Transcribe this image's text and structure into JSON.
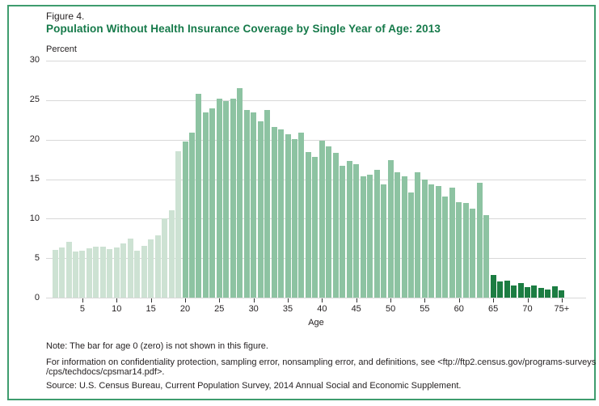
{
  "figure": {
    "label": "Figure 4.",
    "title": "Population Without Health Insurance Coverage by Single Year of Age: 2013"
  },
  "notes": {
    "age_zero_note": "Note: The bar for age 0 (zero) is not shown in this figure.",
    "confidentiality_line1": "For information on confidentiality protection, sampling error, nonsampling error, and definitions, see <ftp://ftp2.census.gov/programs-surveys",
    "confidentiality_line2": "/cps/techdocs/cpsmar14.pdf>.",
    "source": "Source: U.S. Census Bureau, Current Population Survey, 2014 Annual Social and Economic Supplement."
  },
  "colors": {
    "title_green": "#167a4a",
    "border_green": "#3e9c6e",
    "gridline_gray": "#d8d8d8",
    "light_green_ages_1_19": "#cde2d3",
    "medium_green_ages_20_64": "#8dc3a2",
    "dark_green_ages_65_plus": "#1c7d42"
  },
  "chart_data": {
    "type": "bar",
    "title": "Population Without Health Insurance Coverage by Single Year of Age: 2013",
    "xlabel": "Age",
    "ylabel": "Percent",
    "ylim": [
      0,
      30
    ],
    "grid": "horizontal",
    "legend": "none",
    "y_ticks": [
      0,
      5,
      10,
      15,
      20,
      25,
      30
    ],
    "x_tick_ages": [
      5,
      10,
      15,
      20,
      25,
      30,
      35,
      40,
      45,
      50,
      55,
      60,
      65,
      70,
      75
    ],
    "x_tick_labels": [
      "5",
      "10",
      "15",
      "20",
      "25",
      "30",
      "35",
      "40",
      "45",
      "50",
      "55",
      "60",
      "65",
      "70",
      "75+"
    ],
    "start_age": 1,
    "last_category": "75+",
    "excluded_category": "age 0 (zero) not shown",
    "values": [
      6.1,
      6.4,
      7.1,
      5.9,
      6.0,
      6.3,
      6.5,
      6.5,
      6.2,
      6.4,
      6.9,
      7.5,
      6.0,
      6.6,
      7.4,
      7.9,
      10.0,
      11.1,
      18.5,
      19.8,
      20.9,
      25.8,
      23.4,
      23.9,
      25.2,
      24.9,
      25.2,
      26.5,
      23.7,
      23.4,
      22.3,
      23.7,
      21.6,
      21.3,
      20.7,
      20.1,
      20.9,
      18.4,
      17.8,
      19.9,
      19.1,
      18.3,
      16.7,
      17.3,
      16.9,
      15.4,
      15.6,
      16.2,
      14.3,
      17.4,
      15.9,
      15.4,
      13.3,
      15.9,
      14.9,
      14.3,
      14.1,
      12.8,
      13.9,
      12.1,
      12.0,
      11.3,
      14.5,
      10.5,
      2.9,
      2.1,
      2.2,
      1.6,
      1.9,
      1.4,
      1.6,
      1.3,
      1.0,
      1.5,
      0.9
    ],
    "segments": [
      {
        "label": "ages 1-19",
        "from": 1,
        "to": 19,
        "color": "#cde2d3"
      },
      {
        "label": "ages 20-64",
        "from": 20,
        "to": 64,
        "color": "#8dc3a2"
      },
      {
        "label": "ages 65-75+",
        "from": 65,
        "to": 75,
        "color": "#1c7d42"
      }
    ]
  }
}
